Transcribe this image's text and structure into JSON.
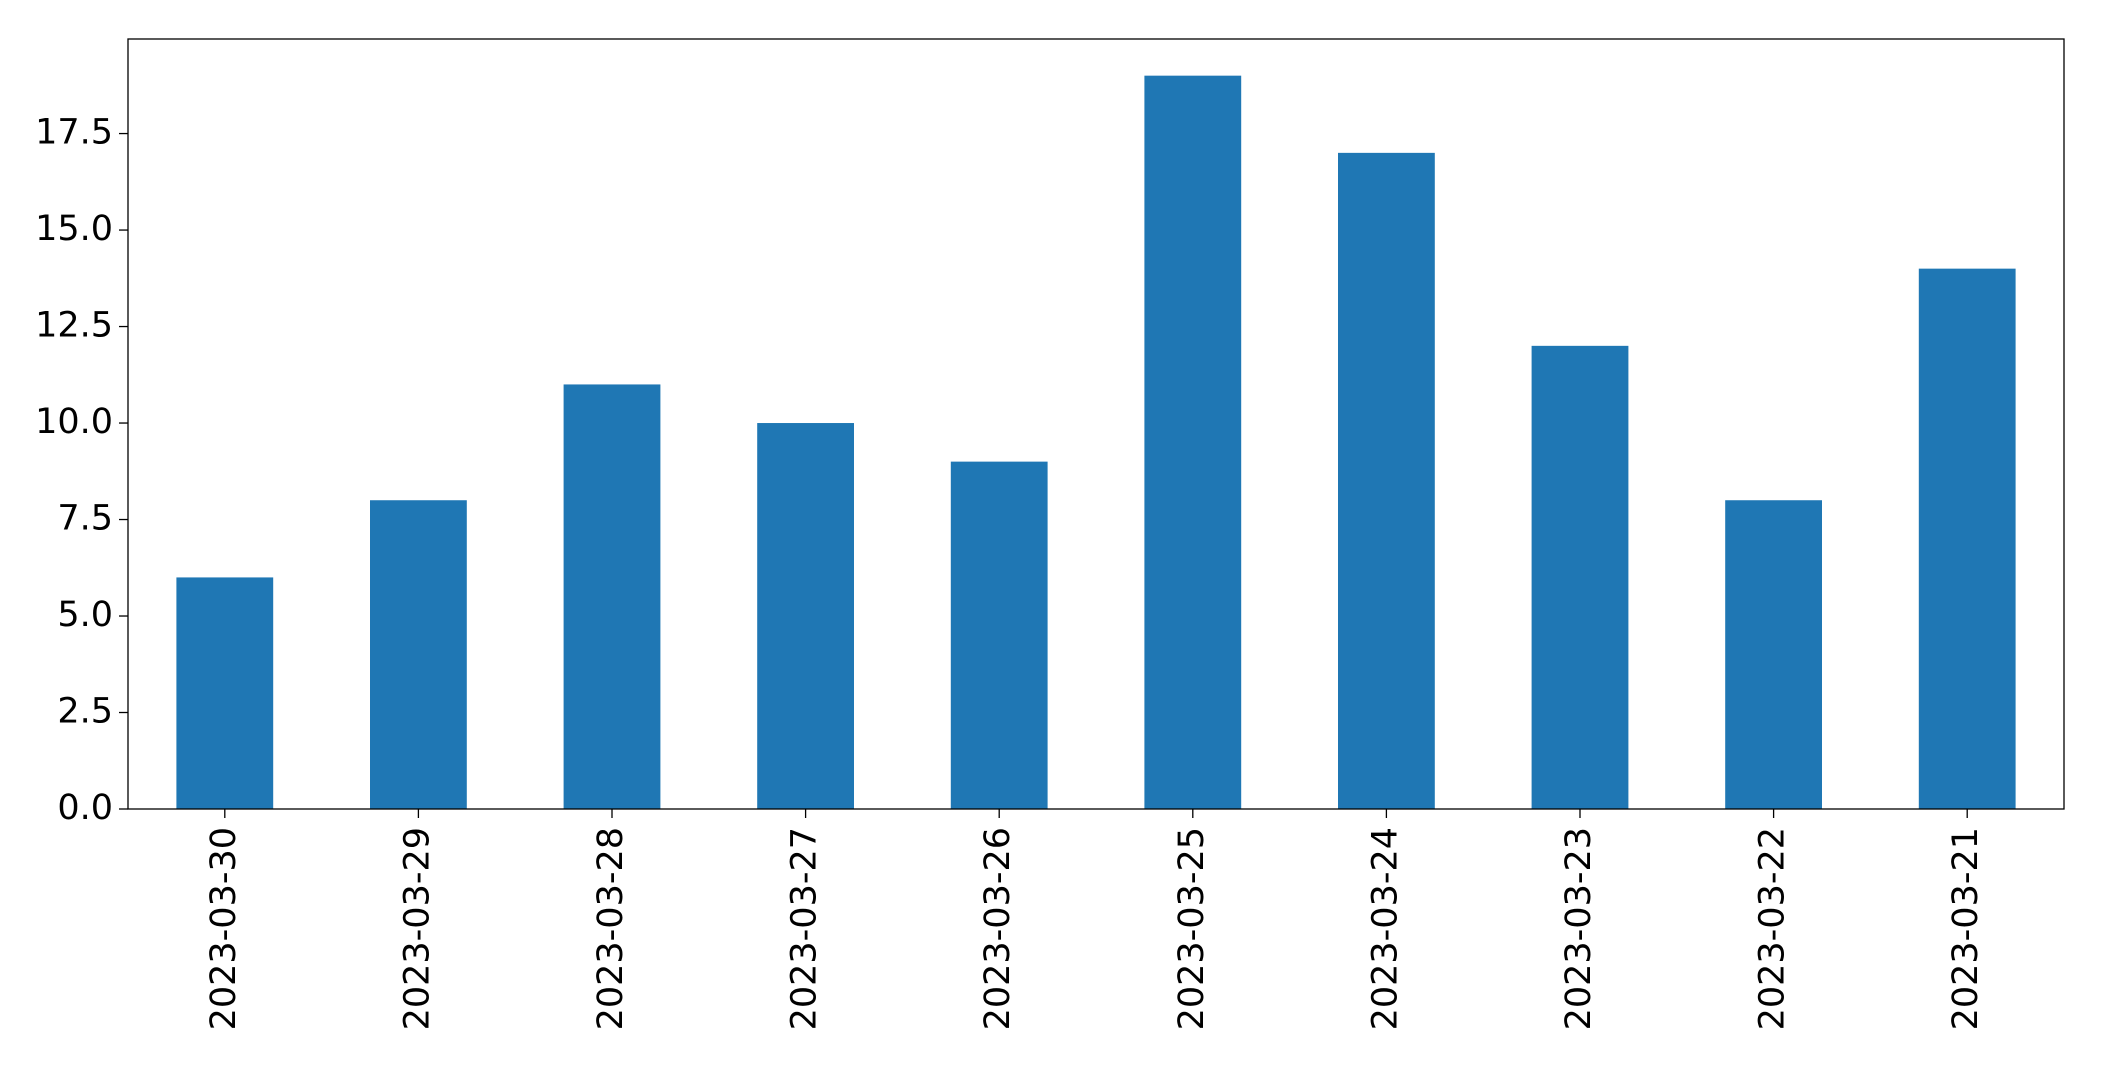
{
  "chart_data": {
    "type": "bar",
    "categories": [
      "2023-03-30",
      "2023-03-29",
      "2023-03-28",
      "2023-03-27",
      "2023-03-26",
      "2023-03-25",
      "2023-03-24",
      "2023-03-23",
      "2023-03-22",
      "2023-03-21"
    ],
    "values": [
      6,
      8,
      11,
      10,
      9,
      19,
      17,
      12,
      8,
      14
    ],
    "color": "#1f77b4",
    "ylim": [
      0,
      19.95
    ],
    "yticks": [
      {
        "value": 0,
        "label": "0.0"
      },
      {
        "value": 2.5,
        "label": "2.5"
      },
      {
        "value": 5,
        "label": "5.0"
      },
      {
        "value": 7.5,
        "label": "7.5"
      },
      {
        "value": 10,
        "label": "10.0"
      },
      {
        "value": 12.5,
        "label": "12.5"
      },
      {
        "value": 15,
        "label": "15.0"
      },
      {
        "value": 17.5,
        "label": "17.5"
      }
    ],
    "grid": false
  }
}
